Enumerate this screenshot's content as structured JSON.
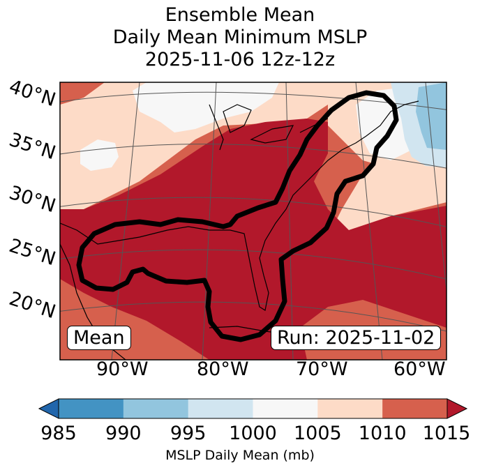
{
  "title": {
    "line1": "Ensemble Mean",
    "line2": "Daily Mean Minimum MSLP",
    "line3": "2025-11-06 12z-12z"
  },
  "axes": {
    "latitude_labels": [
      "40°N",
      "35°N",
      "30°N",
      "25°N",
      "20°N"
    ],
    "longitude_labels": [
      "90°W",
      "80°W",
      "70°W",
      "60°W"
    ]
  },
  "badges": {
    "left": "Mean",
    "right": "Run: 2025-11-02"
  },
  "colorbar": {
    "label": "MSLP Daily Mean (mb)",
    "ticks": [
      "985",
      "990",
      "995",
      "1000",
      "1005",
      "1010",
      "1015"
    ],
    "colors": [
      "#2166ac",
      "#4393c3",
      "#92c5de",
      "#d1e5f0",
      "#f7f7f7",
      "#fddbc7",
      "#d6604d",
      "#b2182b"
    ]
  },
  "map_colors": {
    "land_outline": "#000000",
    "contour": "#000000",
    "grid": "#555555"
  }
}
